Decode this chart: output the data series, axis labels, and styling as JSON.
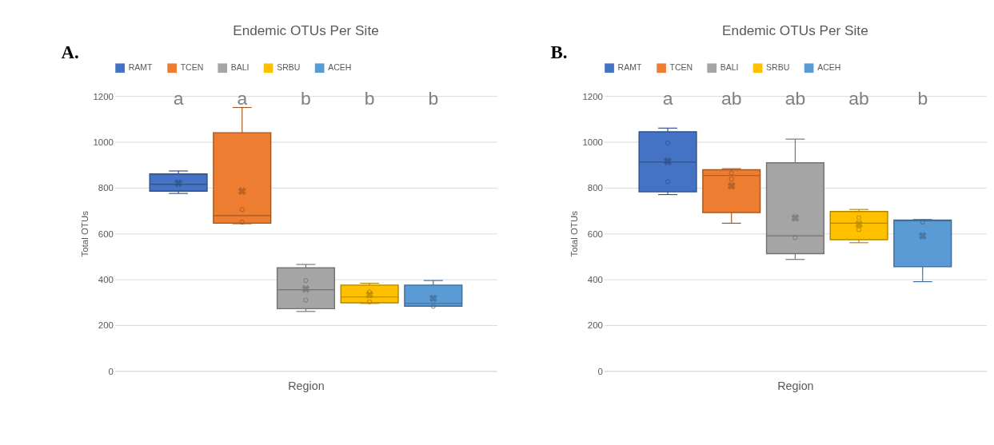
{
  "chart_data": [
    {
      "type": "box",
      "title": "Endemic OTUs Per Site",
      "xlabel": "Region",
      "ylabel": "Total OTUs",
      "categories": [
        null
      ],
      "ylim": [
        0,
        1200
      ],
      "yticks": [
        0,
        200,
        400,
        600,
        800,
        1000,
        1200
      ],
      "grid": "y",
      "legend": "top",
      "annotations": [
        "A.",
        "a",
        "a",
        "b",
        "b",
        "b"
      ],
      "series": [
        {
          "name": "RAMT",
          "color": "#4472c4",
          "boxes": [
            {
              "low": 775,
              "q1": 785,
              "median": 815,
              "q3": 860,
              "high": 873,
              "mean": 820
            }
          ]
        },
        {
          "name": "TCEN",
          "color": "#ed7d31",
          "boxes": [
            {
              "low": 643,
              "q1": 645,
              "median": 678,
              "q3": 1040,
              "high": 1150,
              "mean": 785,
              "outliers": [
                705,
                650
              ]
            }
          ]
        },
        {
          "name": "BALI",
          "color": "#a5a5a5",
          "boxes": [
            {
              "low": 260,
              "q1": 272,
              "median": 355,
              "q3": 450,
              "high": 465,
              "mean": 358,
              "outliers": [
                395,
                310
              ]
            }
          ]
        },
        {
          "name": "SRBU",
          "color": "#ffc000",
          "boxes": [
            {
              "low": 295,
              "q1": 298,
              "median": 323,
              "q3": 375,
              "high": 383,
              "mean": 333,
              "outliers": [
                345,
                302
              ]
            }
          ]
        },
        {
          "name": "ACEH",
          "color": "#5b9bd5",
          "boxes": [
            {
              "low": 283,
              "q1": 283,
              "median": 295,
              "q3": 375,
              "high": 395,
              "mean": 317,
              "outliers": [
                283
              ]
            }
          ]
        }
      ]
    },
    {
      "type": "box",
      "title": "Endemic OTUs Per Site",
      "xlabel": "Region",
      "ylabel": "Total OTUs",
      "categories": [
        null
      ],
      "ylim": [
        0,
        1200
      ],
      "yticks": [
        0,
        200,
        400,
        600,
        800,
        1000,
        1200
      ],
      "grid": "y",
      "legend": "top",
      "annotations": [
        "B.",
        "a",
        "ab",
        "ab",
        "ab",
        "b"
      ],
      "series": [
        {
          "name": "RAMT",
          "color": "#4472c4",
          "boxes": [
            {
              "low": 770,
              "q1": 782,
              "median": 912,
              "q3": 1044,
              "high": 1060,
              "mean": 915,
              "outliers": [
                995,
                826
              ]
            }
          ]
        },
        {
          "name": "TCEN",
          "color": "#ed7d31",
          "boxes": [
            {
              "low": 645,
              "q1": 692,
              "median": 853,
              "q3": 878,
              "high": 883,
              "mean": 808,
              "outliers": [
                864,
                838
              ]
            }
          ]
        },
        {
          "name": "BALI",
          "color": "#a5a5a5",
          "boxes": [
            {
              "low": 487,
              "q1": 512,
              "median": 590,
              "q3": 909,
              "high": 1012,
              "mean": 668,
              "outliers": [
                582
              ]
            }
          ]
        },
        {
          "name": "SRBU",
          "color": "#ffc000",
          "boxes": [
            {
              "low": 560,
              "q1": 573,
              "median": 645,
              "q3": 696,
              "high": 705,
              "mean": 640,
              "outliers": [
                669,
                617
              ]
            }
          ]
        },
        {
          "name": "ACEH",
          "color": "#5b9bd5",
          "boxes": [
            {
              "low": 390,
              "q1": 455,
              "median": 655,
              "q3": 659,
              "high": 661,
              "mean": 590,
              "outliers": [
                650
              ]
            }
          ]
        }
      ]
    }
  ]
}
